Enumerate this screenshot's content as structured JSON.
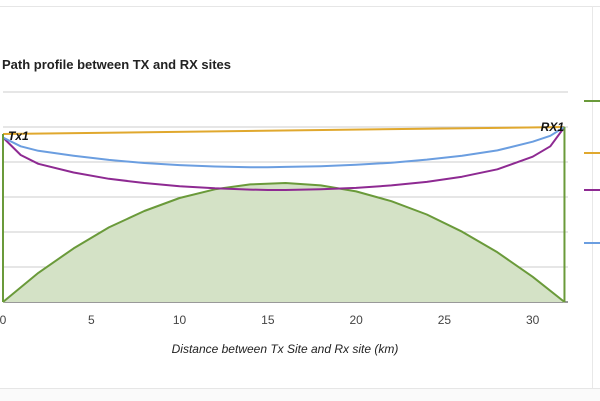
{
  "chart_data": {
    "type": "area",
    "title": "Path profile between TX and RX sites",
    "xlabel": "Distance between Tx Site and Rx site (km)",
    "ylabel": "",
    "xlim": [
      0,
      32
    ],
    "ylim": [
      0,
      6
    ],
    "x_ticks": [
      0,
      5,
      10,
      15,
      20,
      25,
      30
    ],
    "grid": true,
    "legend": "right",
    "endpoint_labels": [
      "Tx1",
      "RX1"
    ],
    "series": [
      {
        "color": "#6a9a3a",
        "fill": "#d4e2c6",
        "x": [
          0,
          2,
          4,
          6,
          8,
          10,
          12,
          14,
          16,
          18,
          20,
          22,
          24,
          26,
          28,
          30,
          31.8
        ],
        "y": [
          0,
          0.83,
          1.53,
          2.13,
          2.6,
          2.97,
          3.22,
          3.36,
          3.4,
          3.33,
          3.16,
          2.88,
          2.5,
          2.01,
          1.42,
          0.72,
          0.0
        ]
      },
      {
        "color": "#e0a82e",
        "x": [
          0,
          31.8
        ],
        "y": [
          4.8,
          5.0
        ]
      },
      {
        "color": "#8e2a92",
        "x": [
          0,
          1,
          2,
          4,
          6,
          8,
          10,
          12,
          14,
          15,
          16,
          18,
          20,
          22,
          24,
          26,
          28,
          30,
          31,
          31.8
        ],
        "y": [
          4.7,
          4.2,
          3.95,
          3.7,
          3.52,
          3.4,
          3.31,
          3.25,
          3.21,
          3.2,
          3.2,
          3.22,
          3.26,
          3.33,
          3.43,
          3.58,
          3.79,
          4.15,
          4.45,
          5.0
        ]
      },
      {
        "color": "#6b9ee0",
        "x": [
          0,
          1,
          2,
          4,
          6,
          8,
          10,
          12,
          14,
          15,
          16,
          18,
          20,
          22,
          24,
          26,
          28,
          30,
          31,
          31.8
        ],
        "y": [
          4.7,
          4.45,
          4.32,
          4.18,
          4.06,
          3.97,
          3.91,
          3.87,
          3.85,
          3.85,
          3.86,
          3.88,
          3.92,
          3.98,
          4.07,
          4.18,
          4.33,
          4.58,
          4.75,
          5.0
        ]
      }
    ]
  }
}
